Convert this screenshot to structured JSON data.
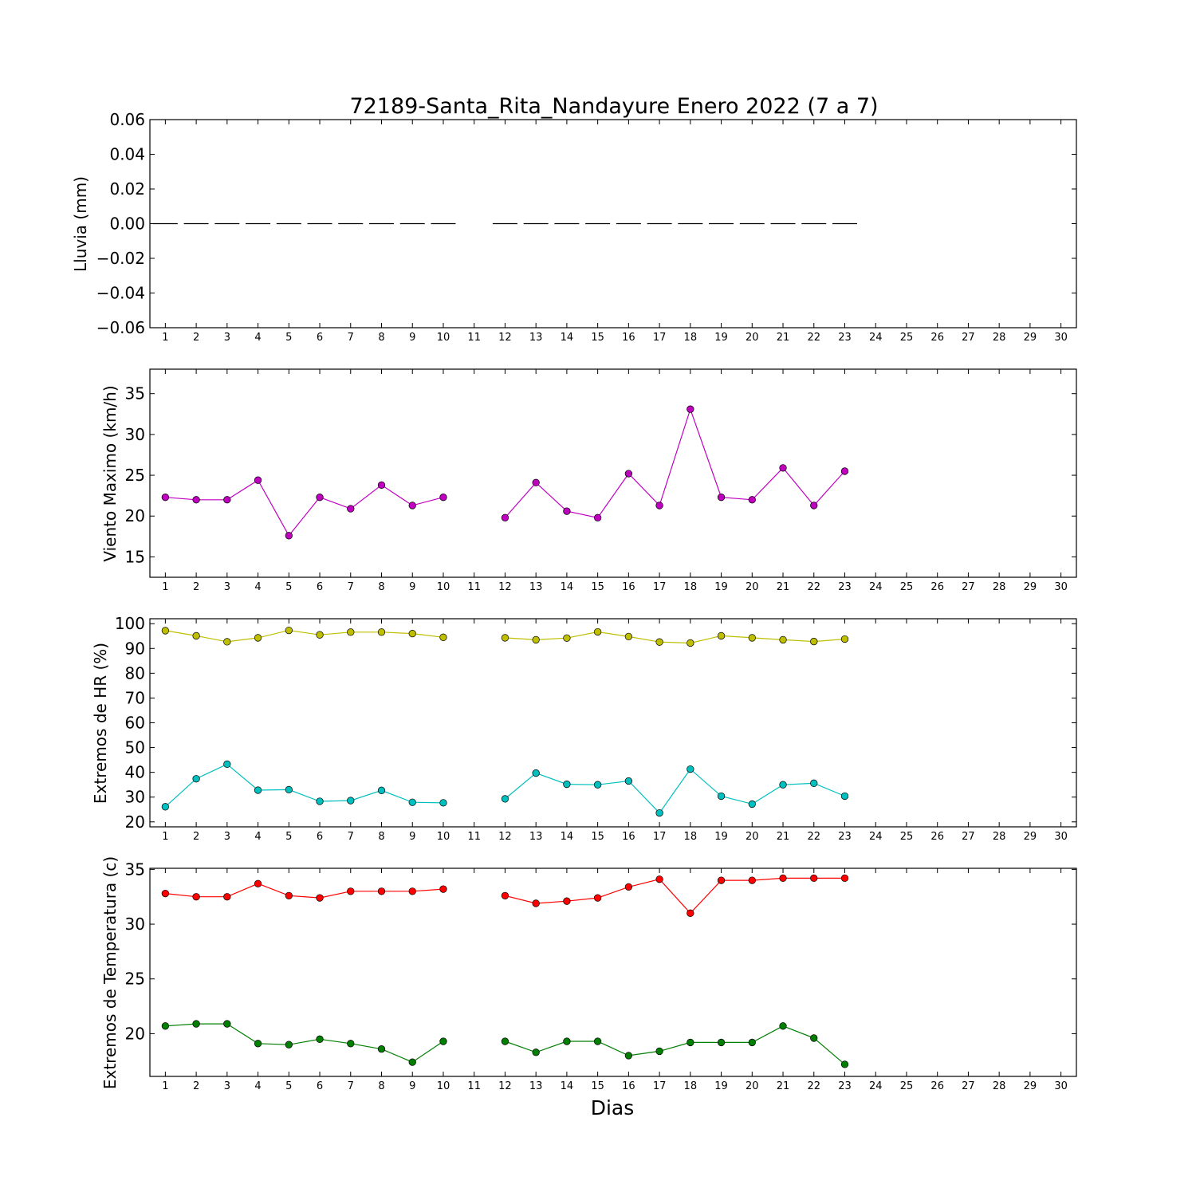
{
  "figure_title": "72189-Santa_Rita_Nandayure Enero 2022  (7 a 7)",
  "xlabel": "Dias",
  "chart_data": [
    {
      "type": "bar",
      "ylabel": "Lluvia (mm)",
      "ylim": [
        -0.06,
        0.06
      ],
      "yticks": [
        "0.06",
        "0.04",
        "0.02",
        "0.00",
        "−0.02",
        "−0.04",
        "−0.06"
      ],
      "ytick_values": [
        0.06,
        0.04,
        0.02,
        0.0,
        -0.02,
        -0.04,
        -0.06
      ],
      "xlim": [
        0.5,
        30.5
      ],
      "x_ticks": [
        1,
        2,
        3,
        4,
        5,
        6,
        7,
        8,
        9,
        10,
        11,
        12,
        13,
        14,
        15,
        16,
        17,
        18,
        19,
        20,
        21,
        22,
        23,
        24,
        25,
        26,
        27,
        28,
        29,
        30
      ],
      "series": [
        {
          "color": "#000000",
          "x": [
            1,
            2,
            3,
            4,
            5,
            6,
            7,
            8,
            9,
            10,
            12,
            13,
            14,
            15,
            16,
            17,
            18,
            19,
            20,
            21,
            22,
            23
          ],
          "values": [
            0,
            0,
            0,
            0,
            0,
            0,
            0,
            0,
            0,
            0,
            0,
            0,
            0,
            0,
            0,
            0,
            0,
            0,
            0,
            0,
            0,
            0
          ]
        }
      ]
    },
    {
      "type": "line",
      "ylabel": "Viento Maximo (km/h)",
      "ylim": [
        12.5,
        38
      ],
      "yticks": [
        "15",
        "20",
        "25",
        "30",
        "35"
      ],
      "ytick_values": [
        15,
        20,
        25,
        30,
        35
      ],
      "xlim": [
        0.5,
        30.5
      ],
      "x_ticks": [
        1,
        2,
        3,
        4,
        5,
        6,
        7,
        8,
        9,
        10,
        11,
        12,
        13,
        14,
        15,
        16,
        17,
        18,
        19,
        20,
        21,
        22,
        23,
        24,
        25,
        26,
        27,
        28,
        29,
        30
      ],
      "series": [
        {
          "color": "#bf00bf",
          "x": [
            1,
            2,
            3,
            4,
            5,
            6,
            7,
            8,
            9,
            10,
            null,
            12,
            13,
            14,
            15,
            16,
            17,
            18,
            19,
            20,
            21,
            22,
            23
          ],
          "values": [
            22.3,
            22.0,
            22.0,
            24.4,
            17.6,
            22.3,
            20.9,
            23.8,
            21.3,
            22.3,
            null,
            19.8,
            24.1,
            20.6,
            19.8,
            25.2,
            21.3,
            33.1,
            22.3,
            22.0,
            25.9,
            21.3,
            25.5
          ]
        }
      ]
    },
    {
      "type": "line",
      "ylabel": "Extremos de HR (%)",
      "ylim": [
        18,
        102
      ],
      "yticks": [
        "20",
        "30",
        "40",
        "50",
        "60",
        "70",
        "80",
        "90",
        "100"
      ],
      "ytick_values": [
        20,
        30,
        40,
        50,
        60,
        70,
        80,
        90,
        100
      ],
      "xlim": [
        0.5,
        30.5
      ],
      "x_ticks": [
        1,
        2,
        3,
        4,
        5,
        6,
        7,
        8,
        9,
        10,
        11,
        12,
        13,
        14,
        15,
        16,
        17,
        18,
        19,
        20,
        21,
        22,
        23,
        24,
        25,
        26,
        27,
        28,
        29,
        30
      ],
      "series": [
        {
          "color": "#bfbf00",
          "x": [
            1,
            2,
            3,
            4,
            5,
            6,
            7,
            8,
            9,
            10,
            null,
            12,
            13,
            14,
            15,
            16,
            17,
            18,
            19,
            20,
            21,
            22,
            23
          ],
          "values": [
            97.2,
            95.1,
            92.7,
            94.3,
            97.3,
            95.5,
            96.6,
            96.6,
            96.0,
            94.5,
            null,
            94.3,
            93.5,
            94.2,
            96.7,
            94.8,
            92.6,
            92.2,
            95.1,
            94.3,
            93.5,
            92.8,
            93.8
          ]
        },
        {
          "color": "#00bfbf",
          "x": [
            1,
            2,
            3,
            4,
            5,
            6,
            7,
            8,
            9,
            10,
            null,
            12,
            13,
            14,
            15,
            16,
            17,
            18,
            19,
            20,
            21,
            22,
            23
          ],
          "values": [
            26.1,
            37.4,
            43.3,
            32.8,
            33.0,
            28.3,
            28.6,
            32.7,
            27.9,
            27.7,
            null,
            29.3,
            39.7,
            35.2,
            35.0,
            36.5,
            23.6,
            41.3,
            30.4,
            27.2,
            35.0,
            35.6,
            30.4
          ]
        }
      ]
    },
    {
      "type": "line",
      "ylabel": "Extremos de Temperatura (c)",
      "ylim": [
        16.1,
        35.1
      ],
      "yticks": [
        "20",
        "25",
        "30",
        "35"
      ],
      "ytick_values": [
        20,
        25,
        30,
        35
      ],
      "xlim": [
        0.5,
        30.5
      ],
      "x_ticks": [
        1,
        2,
        3,
        4,
        5,
        6,
        7,
        8,
        9,
        10,
        11,
        12,
        13,
        14,
        15,
        16,
        17,
        18,
        19,
        20,
        21,
        22,
        23,
        24,
        25,
        26,
        27,
        28,
        29,
        30
      ],
      "series": [
        {
          "color": "#ff0000",
          "x": [
            1,
            2,
            3,
            4,
            5,
            6,
            7,
            8,
            9,
            10,
            null,
            12,
            13,
            14,
            15,
            16,
            17,
            18,
            19,
            20,
            21,
            22,
            23
          ],
          "values": [
            32.8,
            32.5,
            32.5,
            33.7,
            32.6,
            32.4,
            33.0,
            33.0,
            33.0,
            33.2,
            null,
            32.6,
            31.9,
            32.1,
            32.4,
            33.4,
            34.1,
            31.0,
            34.0,
            34.0,
            34.2,
            34.2,
            34.2
          ]
        },
        {
          "color": "#007f00",
          "x": [
            1,
            2,
            3,
            4,
            5,
            6,
            7,
            8,
            9,
            10,
            null,
            12,
            13,
            14,
            15,
            16,
            17,
            18,
            19,
            20,
            21,
            22,
            23
          ],
          "values": [
            20.7,
            20.9,
            20.9,
            19.1,
            19.0,
            19.5,
            19.1,
            18.6,
            17.4,
            19.3,
            null,
            19.3,
            18.3,
            19.3,
            19.3,
            18.0,
            18.4,
            19.2,
            19.2,
            19.2,
            20.7,
            19.6,
            17.2
          ]
        }
      ]
    }
  ]
}
